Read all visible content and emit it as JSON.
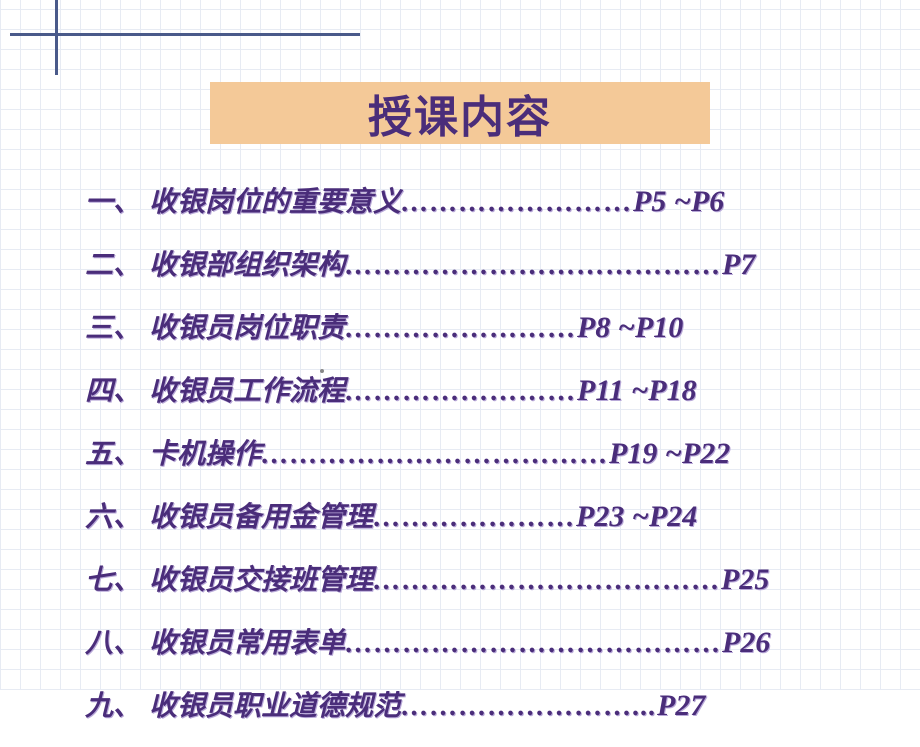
{
  "title": "授课内容",
  "title_bg_color": "#f4c998",
  "text_color": "#4a2d7a",
  "accent_color": "#4a5a8a",
  "grid_color": "#d0d8e8",
  "toc": [
    {
      "num": "一、",
      "title": "收银岗位的重要意义",
      "dots": "……………………",
      "page": "P5 ~P6"
    },
    {
      "num": "二、",
      "title": "收银部组织架构",
      "dots": "…………………………………",
      "page": "P7"
    },
    {
      "num": "三、",
      "title": "收银员岗位职责",
      "dots": "……………………",
      "page": "P8 ~P10"
    },
    {
      "num": "四、",
      "title": "收银员工作流程",
      "dots": "……………………",
      "page": "P11 ~P18"
    },
    {
      "num": "五、",
      "title": "卡机操作",
      "dots": "………………………………",
      "page": "P19 ~P22"
    },
    {
      "num": "六、",
      "title": "收银员备用金管理",
      "dots": "…………………",
      "page": "P23 ~P24"
    },
    {
      "num": "七、",
      "title": "收银员交接班管理",
      "dots": "………………………………",
      "page": "P25"
    },
    {
      "num": "八、",
      "title": "收银员常用表单",
      "dots": "…………………………………",
      "page": "P26"
    },
    {
      "num": "九、",
      "title": "收银员职业道德规范",
      "dots": "……………………...",
      "page": "P27"
    }
  ]
}
